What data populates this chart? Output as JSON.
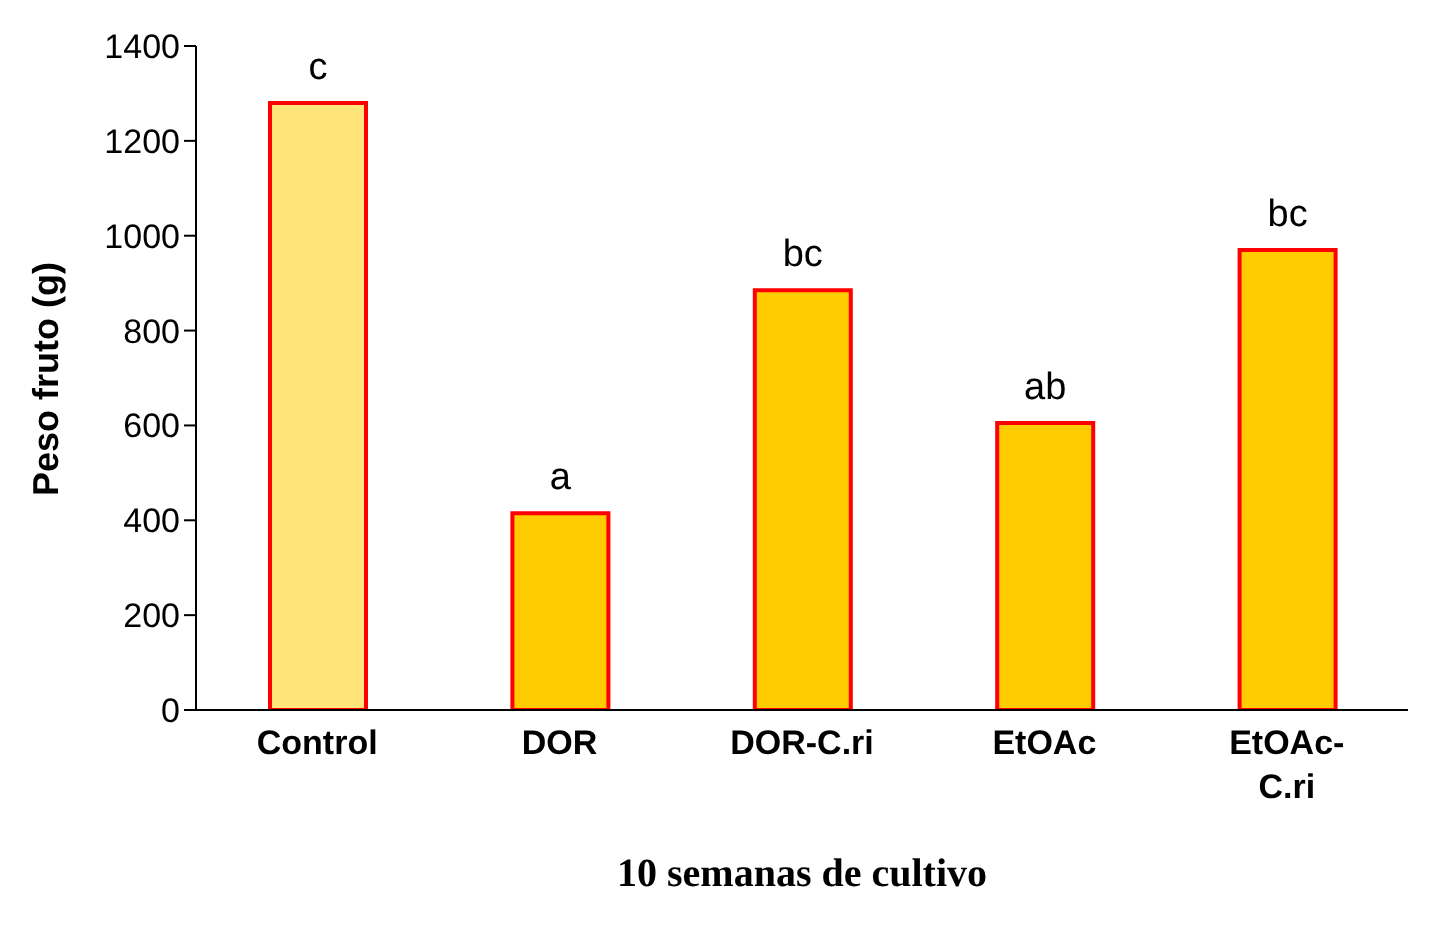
{
  "chart_data": {
    "type": "bar",
    "xlabel": "10 semanas de cultivo",
    "ylabel": "Peso fruto (g)",
    "categories": [
      "Control",
      "DOR",
      "DOR-C.ri",
      "EtOAc",
      "EtOAc-C.ri"
    ],
    "values": [
      1280,
      415,
      885,
      605,
      970
    ],
    "colors": [
      "#ffe47a",
      "#ffcc00",
      "#ffcc00",
      "#ffcc00",
      "#ffcc00"
    ],
    "value_labels": [
      "c",
      "a",
      "bc",
      "ab",
      "bc"
    ],
    "ylim": [
      0,
      1400
    ],
    "yticks": [
      0,
      200,
      400,
      600,
      800,
      1000,
      1200,
      1400
    ],
    "grid": false,
    "legend": false
  }
}
